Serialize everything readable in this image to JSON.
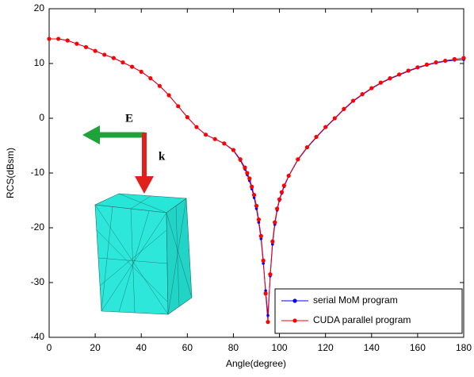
{
  "chart_data": {
    "type": "line",
    "xlabel": "Angle(degree)",
    "ylabel": "RCS(dBsm)",
    "annotations": [
      "E",
      "k"
    ],
    "x": [
      0,
      4,
      8,
      12,
      16,
      20,
      24,
      28,
      32,
      36,
      40,
      44,
      48,
      52,
      56,
      60,
      64,
      68,
      72,
      76,
      80,
      83,
      85,
      86,
      87,
      88,
      89,
      90,
      91,
      92,
      93,
      94,
      95,
      96,
      97,
      98,
      99,
      100,
      101,
      102,
      104,
      108,
      112,
      116,
      120,
      124,
      128,
      132,
      136,
      140,
      144,
      148,
      152,
      156,
      160,
      164,
      168,
      172,
      176,
      180
    ],
    "series": [
      {
        "name": "serial MoM program",
        "color": "#0000ff",
        "values": [
          14.5,
          14.5,
          14.2,
          13.6,
          13,
          12.3,
          11.6,
          11,
          10.2,
          9.4,
          8.5,
          7.3,
          5.9,
          4.2,
          2.2,
          0.2,
          -1.6,
          -3,
          -3.8,
          -4.6,
          -5.9,
          -7.7,
          -9.3,
          -10.3,
          -11.4,
          -12.9,
          -14.5,
          -16.5,
          -19,
          -22,
          -26.5,
          -31.5,
          -36,
          -28.8,
          -23,
          -19.4,
          -16.8,
          -15,
          -13.7,
          -12.5,
          -10.6,
          -7.6,
          -5.4,
          -3.5,
          -1.7,
          -0.1,
          1.6,
          3.1,
          4.3,
          5.4,
          6.4,
          7.2,
          7.9,
          8.6,
          9.2,
          9.7,
          10.1,
          10.4,
          10.6,
          10.7
        ]
      },
      {
        "name": "CUDA parallel program",
        "color": "#ff0000",
        "values": [
          14.5,
          14.5,
          14.2,
          13.6,
          13,
          12.3,
          11.6,
          11,
          10.2,
          9.4,
          8.5,
          7.3,
          5.9,
          4.2,
          2.2,
          0.2,
          -1.6,
          -3,
          -3.8,
          -4.6,
          -5.8,
          -7.5,
          -9,
          -10,
          -11,
          -12.5,
          -14,
          -16,
          -18.5,
          -21.5,
          -26,
          -32,
          -37.2,
          -28.5,
          -22.5,
          -19,
          -16.5,
          -14.8,
          -13.5,
          -12.3,
          -10.5,
          -7.5,
          -5.3,
          -3.4,
          -1.6,
          0,
          1.7,
          3.2,
          4.4,
          5.5,
          6.5,
          7.3,
          8,
          8.7,
          9.3,
          9.8,
          10.2,
          10.5,
          10.8,
          11
        ]
      }
    ],
    "xlim": [
      0,
      180
    ],
    "xticks": [
      0,
      20,
      40,
      60,
      80,
      100,
      120,
      140,
      160,
      180
    ],
    "ylim": [
      -40,
      20
    ],
    "yticks": [
      -40,
      -30,
      -20,
      -10,
      0,
      10,
      20
    ],
    "grid": false,
    "legend": "lower right"
  }
}
